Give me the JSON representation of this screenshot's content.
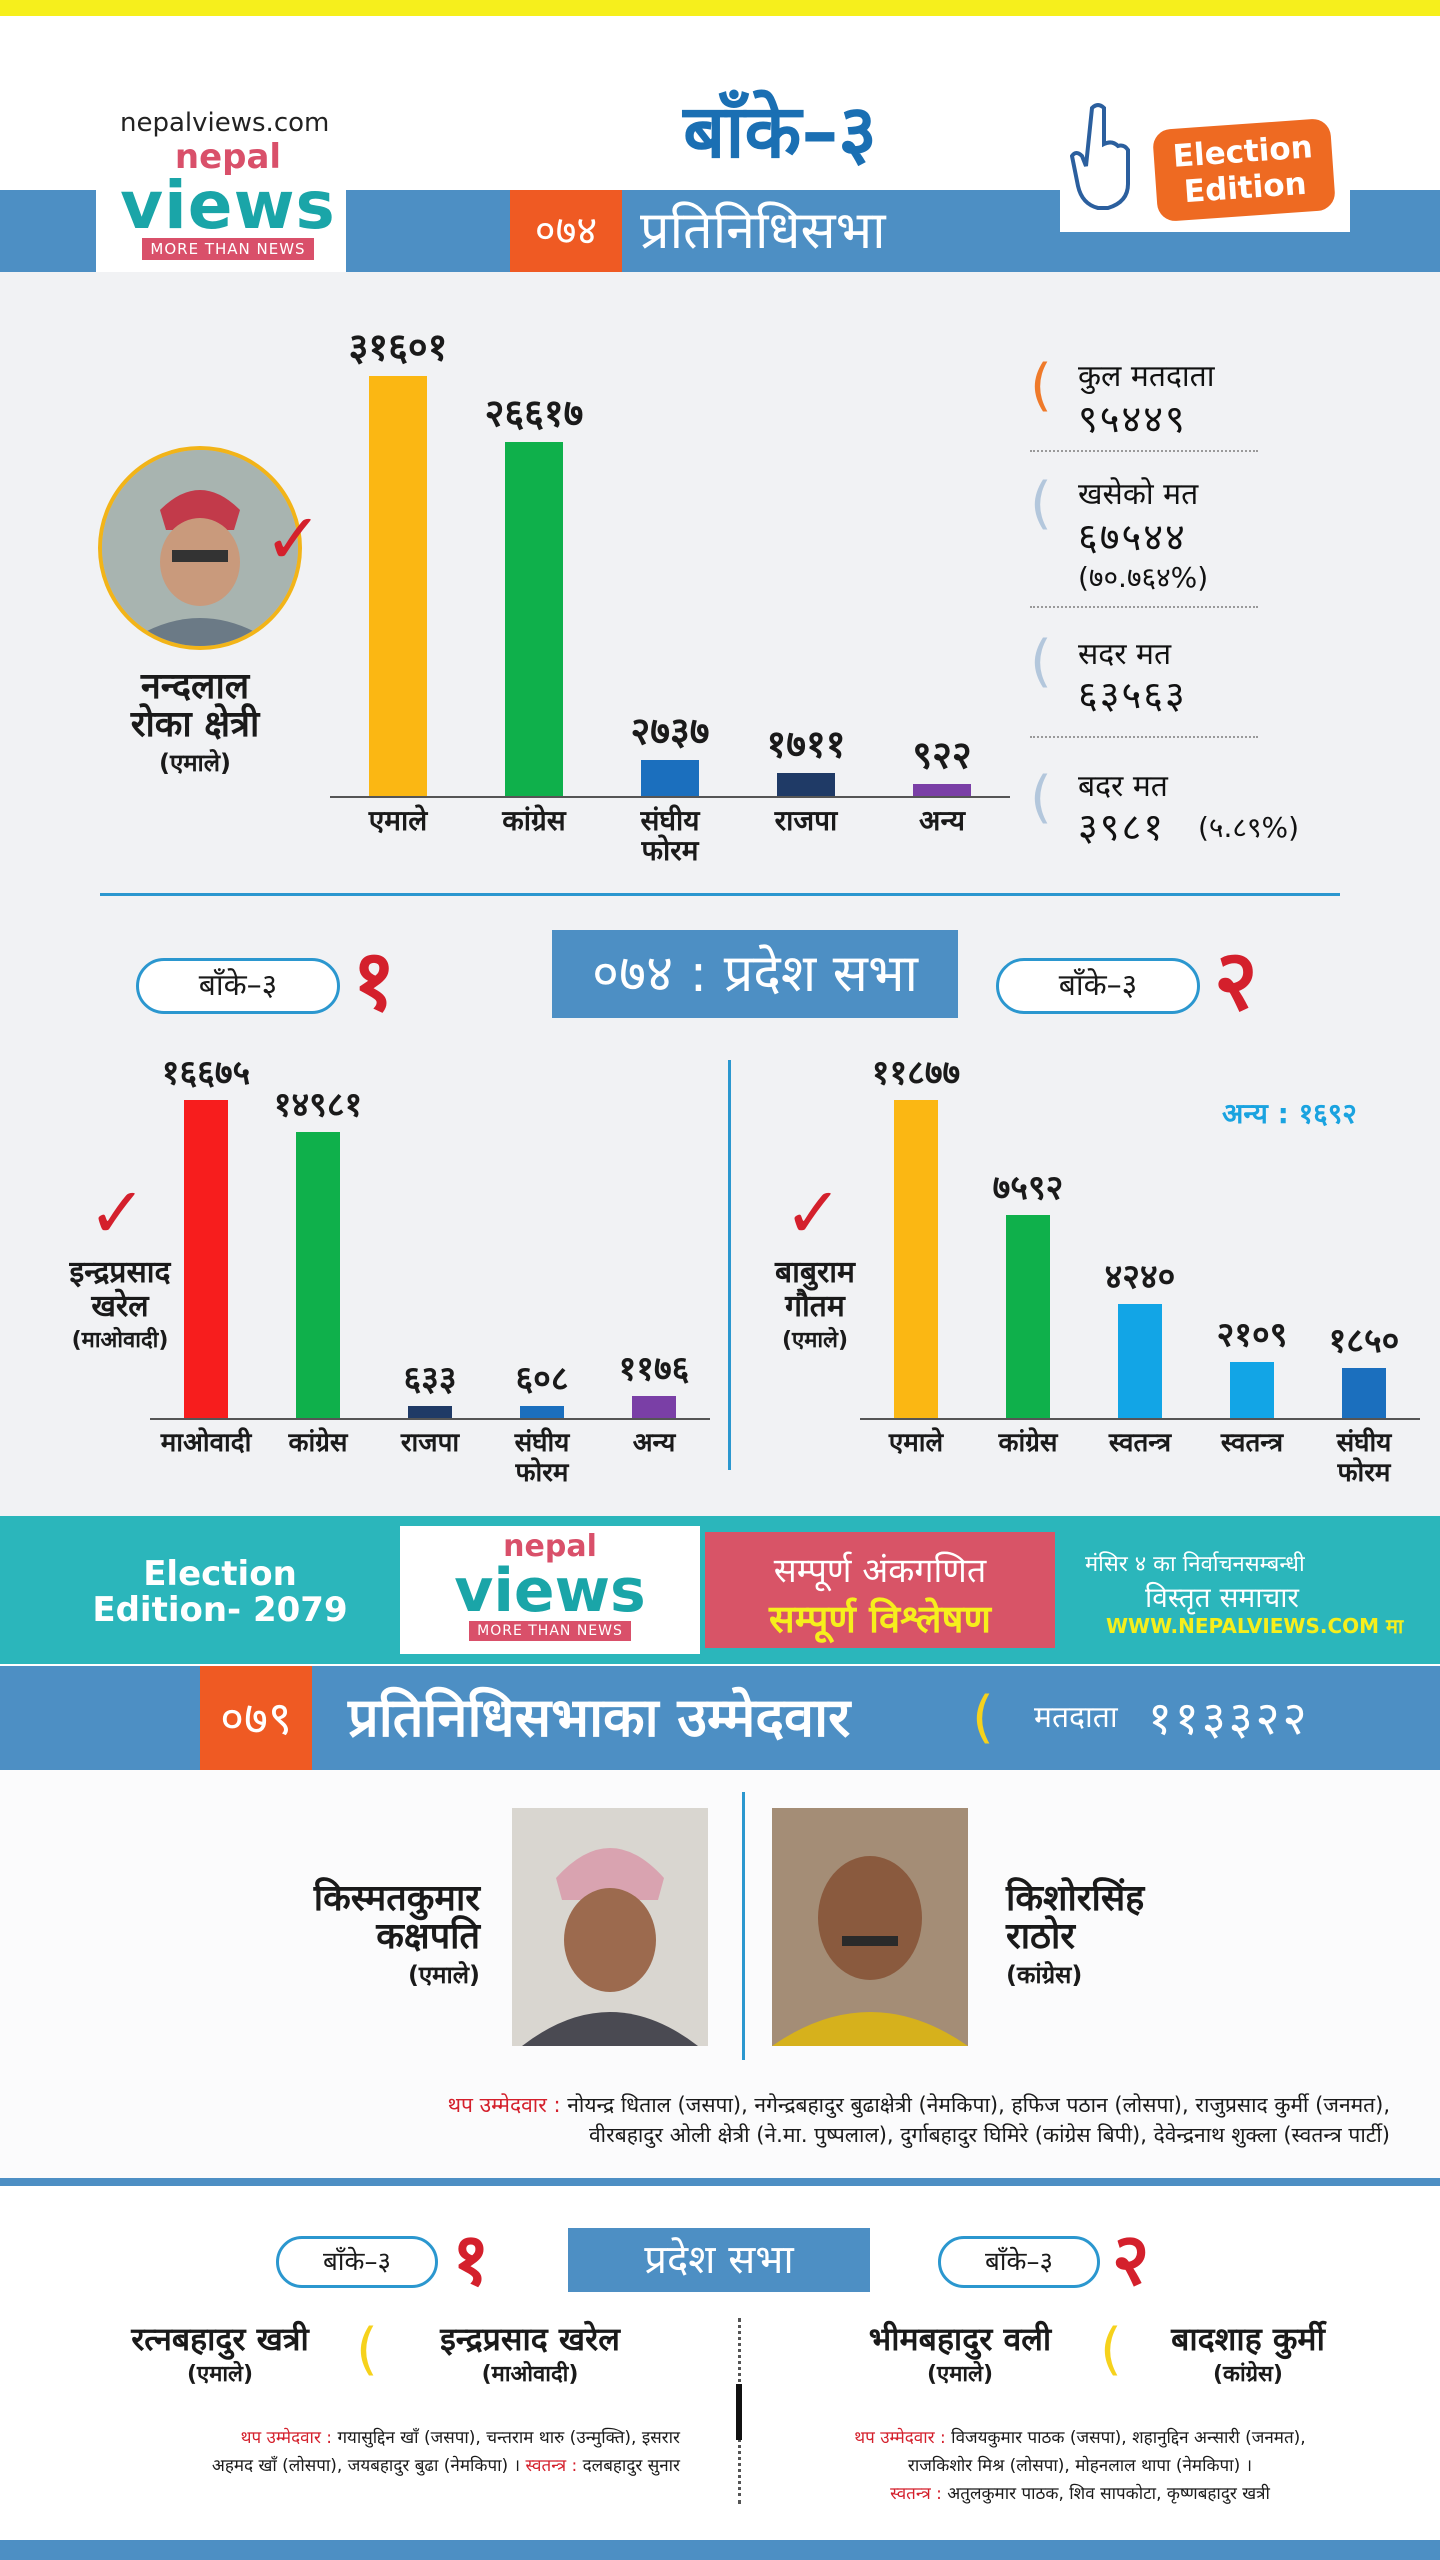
{
  "header": {
    "site": "nepalviews.com",
    "logo_small": "nepal",
    "logo_big": "views",
    "logo_tag": "MORE THAN NEWS",
    "title": "बाँके–३",
    "badge_line1": "Election",
    "badge_line2": "Edition",
    "year": "०७४",
    "section": "प्रतिनिधिसभा"
  },
  "federal_2074": {
    "winner_name_1": "नन्दलाल",
    "winner_name_2": "रोका क्षेत्री",
    "winner_party": "(एमाले)",
    "checkmark": "✓",
    "stats": [
      {
        "label": "कुल मतदाता",
        "value": "९५४४९",
        "extra": ""
      },
      {
        "label": "खसेको मत",
        "value": "६७५४४",
        "extra": "(७०.७६४%)"
      },
      {
        "label": "सदर मत",
        "value": "६३५६३",
        "extra": ""
      },
      {
        "label": "बदर मत",
        "value": "३९८१",
        "extra": "(५.८९%)"
      }
    ]
  },
  "chart_data": [
    {
      "type": "bar",
      "categories": [
        "एमाले",
        "कांग्रेस",
        "संघीय फोरम",
        "राजपा",
        "अन्य"
      ],
      "values": [
        31601,
        26617,
        2737,
        1711,
        922
      ],
      "value_labels": [
        "३१६०१",
        "२६६१७",
        "२७३७",
        "१७११",
        "९२२"
      ],
      "colors": [
        "#fbb713",
        "#0fb04b",
        "#1b6fbe",
        "#1f3a66",
        "#7a3fa6"
      ],
      "ylim": [
        0,
        31601
      ]
    },
    {
      "type": "bar",
      "categories": [
        "माओवादी",
        "कांग्रेस",
        "राजपा",
        "संघीय फोरम",
        "अन्य"
      ],
      "values": [
        16675,
        14981,
        633,
        608,
        1176
      ],
      "value_labels": [
        "१६६७५",
        "१४९८१",
        "६३३",
        "६०८",
        "११७६"
      ],
      "colors": [
        "#f71d1d",
        "#0fb04b",
        "#1f3a66",
        "#1b6fbe",
        "#7a3fa6"
      ],
      "ylim": [
        0,
        16675
      ]
    },
    {
      "type": "bar",
      "categories": [
        "एमाले",
        "कांग्रेस",
        "स्वतन्त्र",
        "स्वतन्त्र",
        "संघीय फोरम"
      ],
      "values": [
        11877,
        7592,
        4240,
        2109,
        1850
      ],
      "value_labels": [
        "११८७७",
        "७५९२",
        "४२४०",
        "२१०९",
        "१८५०"
      ],
      "colors": [
        "#fbb713",
        "#0fb04b",
        "#12a5e6",
        "#12a5e6",
        "#1b6fbe"
      ],
      "ylim": [
        0,
        11877
      ]
    }
  ],
  "provincial_2074": {
    "title": "०७४ : प्रदेश सभा",
    "left_pill": "बाँके–३",
    "left_num": "१",
    "right_pill": "बाँके–३",
    "right_num": "२",
    "left_winner_1": "इन्द्रप्रसाद",
    "left_winner_2": "खरेल",
    "left_party": "(माओवादी)",
    "right_winner_1": "बाबुराम",
    "right_winner_2": "गौतम",
    "right_party": "(एमाले)",
    "others_note": "अन्य : १६९२"
  },
  "banner": {
    "edition_1": "Election",
    "edition_2": "Edition- 2079",
    "logo_small": "nepal",
    "logo_big": "views",
    "logo_tag": "MORE THAN NEWS",
    "pink_1": "सम्पूर्ण अंकगणित",
    "pink_2": "सम्पूर्ण विश्लेषण",
    "right_1": "मंसिर ४ का निर्वाचनसम्बन्धी",
    "right_2": "विस्तृत समाचार",
    "right_3": "WWW.NEPALVIEWS.COM मा"
  },
  "candidates_2079": {
    "year": "०७९",
    "title": "प्रतिनिधिसभाका उम्मेदवार",
    "voters_label": "मतदाता",
    "voters_value": "११३३२२",
    "left_name_1": "किस्मतकुमार",
    "left_name_2": "कक्षपति",
    "left_party": "(एमाले)",
    "right_name_1": "किशोरसिंह",
    "right_name_2": "राठोर",
    "right_party": "(कांग्रेस)",
    "others_label": "थप उम्मेदवार :",
    "others_line1": "नोयन्द्र धिताल (जसपा), नगेन्द्रबहादुर बुढाक्षेत्री (नेमकिपा), हफिज पठान (लोसपा), राजुप्रसाद कुर्मी (जनमत),",
    "others_line2": "वीरबहादुर ओली क्षेत्री (ने.मा. पुष्पलाल), दुर्गाबहादुर घिमिरे (कांग्रेस बिपी), देवेन्द्रनाथ शुक्ला (स्वतन्त्र पार्टी)"
  },
  "provincial_2079": {
    "title": "प्रदेश सभा",
    "left_pill": "बाँके–३",
    "left_num": "१",
    "right_pill": "बाँके–३",
    "right_num": "२",
    "l_c1": "रत्नबहादुर खत्री",
    "l_p1": "(एमाले)",
    "l_c2": "इन्द्रप्रसाद खरेल",
    "l_p2": "(माओवादी)",
    "r_c1": "भीमबहादुर वली",
    "r_p1": "(एमाले)",
    "r_c2": "बादशाह कुर्मी",
    "r_p2": "(कांग्रेस)",
    "l_others_label": "थप उम्मेदवार :",
    "l_others_1": "गयासुद्दिन खाँ (जसपा), चन्तराम थारु (उन्मुक्ति), इसरार",
    "l_others_2": "अहमद खाँ (लोसपा), जयबहादुर बुढा (नेमकिपा) ।",
    "l_ind_label": "स्वतन्त्र :",
    "l_ind": "दलबहादुर सुनार",
    "r_others_label": "थप उम्मेदवार :",
    "r_others_1": "विजयकुमार पाठक (जसपा), शहानुद्दिन अन्सारी (जनमत),",
    "r_others_2": "राजकिशोर मिश्र (लोसपा), मोहनलाल थापा (नेमकिपा) ।",
    "r_ind_label": "स्वतन्त्र :",
    "r_ind": "अतुलकुमार पाठक, शिव सापकोटा, कृष्णबहादुर खत्री"
  }
}
